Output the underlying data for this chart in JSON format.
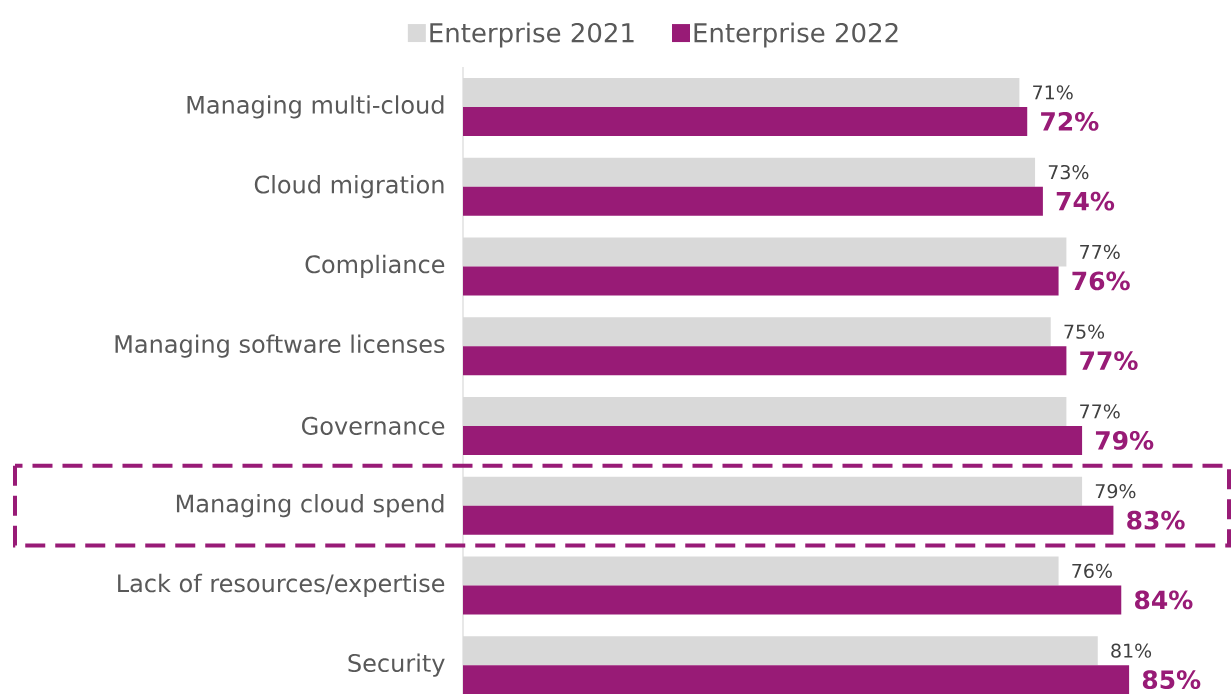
{
  "chart_data": {
    "type": "bar",
    "orientation": "horizontal",
    "legend": "top",
    "data_labels": true,
    "categories": [
      "Managing multi-cloud",
      "Cloud migration",
      "Compliance",
      "Managing software licenses",
      "Governance",
      "Managing cloud spend",
      "Lack of resources/expertise",
      "Security"
    ],
    "series": [
      {
        "name": "Enterprise 2021",
        "color": "#d9d9d9",
        "values": [
          71,
          73,
          77,
          75,
          77,
          79,
          76,
          81
        ],
        "value_labels": [
          "71%",
          "73%",
          "77%",
          "75%",
          "77%",
          "79%",
          "76%",
          "81%"
        ]
      },
      {
        "name": "Enterprise 2022",
        "color": "#981b76",
        "values": [
          72,
          74,
          76,
          77,
          79,
          83,
          84,
          85
        ],
        "value_labels": [
          "72%",
          "74%",
          "76%",
          "77%",
          "79%",
          "83%",
          "84%",
          "85%"
        ]
      }
    ]
  }
}
